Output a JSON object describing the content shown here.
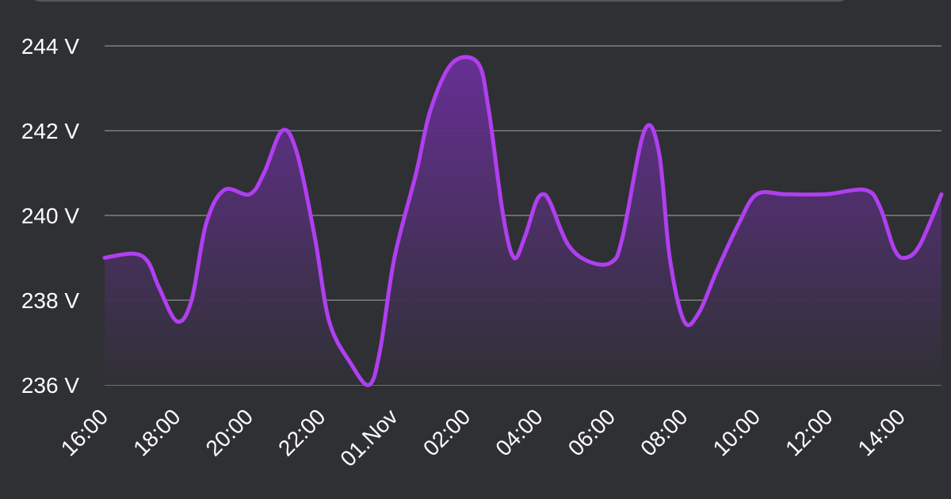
{
  "chart_data": {
    "type": "area",
    "title": "",
    "xlabel": "",
    "ylabel": "",
    "ylim": [
      236,
      244
    ],
    "yticks": [
      {
        "value": 244,
        "label": "244 V"
      },
      {
        "value": 242,
        "label": "242 V"
      },
      {
        "value": 240,
        "label": "240 V"
      },
      {
        "value": 238,
        "label": "238 V"
      },
      {
        "value": 236,
        "label": "236 V"
      }
    ],
    "xlim": [
      16,
      39.1
    ],
    "xticks": [
      {
        "value": 16,
        "label": "16:00"
      },
      {
        "value": 18,
        "label": "18:00"
      },
      {
        "value": 20,
        "label": "20:00"
      },
      {
        "value": 22,
        "label": "22:00"
      },
      {
        "value": 24,
        "label": "01.Nov"
      },
      {
        "value": 26,
        "label": "02:00"
      },
      {
        "value": 28,
        "label": "04:00"
      },
      {
        "value": 30,
        "label": "06:00"
      },
      {
        "value": 32,
        "label": "08:00"
      },
      {
        "value": 34,
        "label": "10:00"
      },
      {
        "value": 36,
        "label": "12:00"
      },
      {
        "value": 38,
        "label": "14:00"
      }
    ],
    "grid": true,
    "colors": {
      "line": "#b03ff0",
      "fill_top": "#6a2f9a",
      "fill_bottom": "#2f3034",
      "background": "#2f3034",
      "grid": "#6a6b70",
      "text": "#ffffff"
    },
    "series": [
      {
        "points": [
          [
            16.0,
            239.0
          ],
          [
            16.8,
            239.1
          ],
          [
            17.2,
            238.9
          ],
          [
            17.5,
            238.3
          ],
          [
            18.0,
            237.5
          ],
          [
            18.4,
            238.0
          ],
          [
            18.8,
            239.8
          ],
          [
            19.3,
            240.6
          ],
          [
            20.0,
            240.5
          ],
          [
            20.4,
            241.0
          ],
          [
            20.9,
            242.0
          ],
          [
            21.3,
            241.5
          ],
          [
            21.8,
            239.5
          ],
          [
            22.2,
            237.5
          ],
          [
            22.8,
            236.5
          ],
          [
            23.3,
            236.0
          ],
          [
            23.6,
            236.8
          ],
          [
            24.0,
            239.0
          ],
          [
            24.6,
            241.0
          ],
          [
            25.0,
            242.5
          ],
          [
            25.6,
            243.6
          ],
          [
            26.3,
            243.6
          ],
          [
            26.6,
            242.5
          ],
          [
            27.0,
            240.0
          ],
          [
            27.3,
            239.0
          ],
          [
            27.6,
            239.5
          ],
          [
            27.9,
            240.3
          ],
          [
            28.1,
            240.5
          ],
          [
            28.3,
            240.3
          ],
          [
            28.8,
            239.3
          ],
          [
            29.4,
            238.9
          ],
          [
            30.0,
            238.9
          ],
          [
            30.3,
            239.5
          ],
          [
            30.9,
            242.0
          ],
          [
            31.3,
            241.5
          ],
          [
            31.6,
            239.0
          ],
          [
            32.0,
            237.5
          ],
          [
            32.4,
            237.7
          ],
          [
            32.9,
            238.7
          ],
          [
            33.5,
            239.8
          ],
          [
            34.0,
            240.5
          ],
          [
            34.8,
            240.5
          ],
          [
            35.9,
            240.5
          ],
          [
            37.0,
            240.6
          ],
          [
            37.4,
            240.2
          ],
          [
            37.8,
            239.2
          ],
          [
            38.1,
            239.0
          ],
          [
            38.5,
            239.3
          ],
          [
            39.1,
            240.5
          ]
        ]
      }
    ]
  }
}
